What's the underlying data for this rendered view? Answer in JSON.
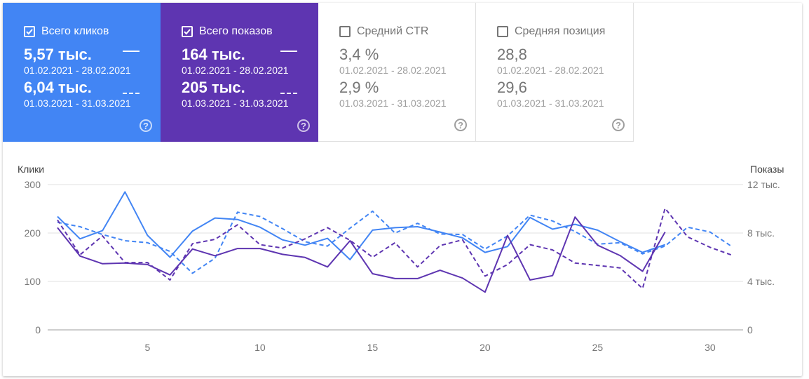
{
  "cards": [
    {
      "label": "Всего кликов",
      "checked": true,
      "value1": "5,57 тыс.",
      "range1": "01.02.2021 - 28.02.2021",
      "value2": "6,04 тыс.",
      "range2": "01.03.2021 - 31.03.2021",
      "help": "?"
    },
    {
      "label": "Всего показов",
      "checked": true,
      "value1": "164 тыс.",
      "range1": "01.02.2021 - 28.02.2021",
      "value2": "205 тыс.",
      "range2": "01.03.2021 - 31.03.2021",
      "help": "?"
    },
    {
      "label": "Средний CTR",
      "checked": false,
      "value1": "3,4 %",
      "range1": "01.02.2021 - 28.02.2021",
      "value2": "2,9 %",
      "range2": "01.03.2021 - 31.03.2021",
      "help": "?"
    },
    {
      "label": "Средняя позиция",
      "checked": false,
      "value1": "28,8",
      "range1": "01.02.2021 - 28.02.2021",
      "value2": "29,6",
      "range2": "01.03.2021 - 31.03.2021",
      "help": "?"
    }
  ],
  "colors": {
    "clicks": "#4285f4",
    "impressions": "#5e35b1",
    "grid": "#e0e0e0",
    "axis": "#9e9e9e"
  },
  "chart_data": {
    "type": "line",
    "left_axis_label": "Клики",
    "right_axis_label": "Показы",
    "left_ticks": [
      "0",
      "100",
      "200",
      "300"
    ],
    "right_ticks": [
      "0",
      "4 тыс.",
      "8 тыс.",
      "12 тыс."
    ],
    "x_ticks": [
      "5",
      "10",
      "15",
      "20",
      "25",
      "30"
    ],
    "x_tick_values": [
      5,
      10,
      15,
      20,
      25,
      30
    ],
    "xlim": [
      1,
      31
    ],
    "ylim_left": [
      0,
      300
    ],
    "ylim_right": [
      0,
      12000
    ],
    "grid": true,
    "series": [
      {
        "axis": "left",
        "style": "solid",
        "color": "#4285f4",
        "x": [
          1,
          2,
          3,
          4,
          5,
          6,
          7,
          8,
          9,
          10,
          11,
          12,
          13,
          14,
          15,
          16,
          17,
          18,
          19,
          20,
          21,
          22,
          23,
          24,
          25,
          26,
          27,
          28
        ],
        "values": [
          234,
          188,
          205,
          285,
          195,
          150,
          204,
          231,
          228,
          212,
          186,
          175,
          189,
          145,
          206,
          211,
          213,
          202,
          190,
          160,
          172,
          232,
          208,
          218,
          206,
          182,
          160,
          176
        ]
      },
      {
        "axis": "left",
        "style": "dashed",
        "color": "#4285f4",
        "x": [
          1,
          2,
          3,
          4,
          5,
          6,
          7,
          8,
          9,
          10,
          11,
          12,
          13,
          14,
          15,
          16,
          17,
          18,
          19,
          20,
          21,
          22,
          23,
          24,
          25,
          26,
          27,
          28,
          29,
          30,
          31
        ],
        "values": [
          222,
          213,
          197,
          184,
          180,
          162,
          117,
          148,
          243,
          234,
          209,
          182,
          173,
          210,
          245,
          200,
          220,
          198,
          197,
          167,
          194,
          237,
          225,
          203,
          177,
          180,
          157,
          173,
          212,
          202,
          171
        ]
      },
      {
        "axis": "right",
        "style": "solid",
        "color": "#5e35b1",
        "x": [
          1,
          2,
          3,
          4,
          5,
          6,
          7,
          8,
          9,
          10,
          11,
          12,
          13,
          14,
          15,
          16,
          17,
          18,
          19,
          20,
          21,
          22,
          23,
          24,
          25,
          26,
          27,
          28
        ],
        "values": [
          8440,
          6100,
          5460,
          5520,
          5400,
          4540,
          6680,
          6120,
          6720,
          6720,
          6240,
          5980,
          5200,
          7360,
          4640,
          4240,
          4240,
          4920,
          4280,
          3120,
          7800,
          4120,
          4480,
          9320,
          7000,
          6140,
          4840,
          8080
        ]
      },
      {
        "axis": "right",
        "style": "dashed",
        "color": "#5e35b1",
        "x": [
          1,
          2,
          3,
          4,
          5,
          6,
          7,
          8,
          9,
          10,
          11,
          12,
          13,
          14,
          15,
          16,
          17,
          18,
          19,
          20,
          21,
          22,
          23,
          24,
          25,
          26,
          27,
          28,
          29,
          30,
          31
        ],
        "values": [
          9080,
          6200,
          7760,
          5560,
          5560,
          4120,
          7120,
          7480,
          8680,
          7040,
          6760,
          7520,
          8440,
          7400,
          6000,
          7200,
          5200,
          6960,
          7440,
          4440,
          5400,
          7040,
          6600,
          5520,
          5320,
          5120,
          3420,
          10040,
          7680,
          6820,
          6150
        ]
      }
    ]
  }
}
